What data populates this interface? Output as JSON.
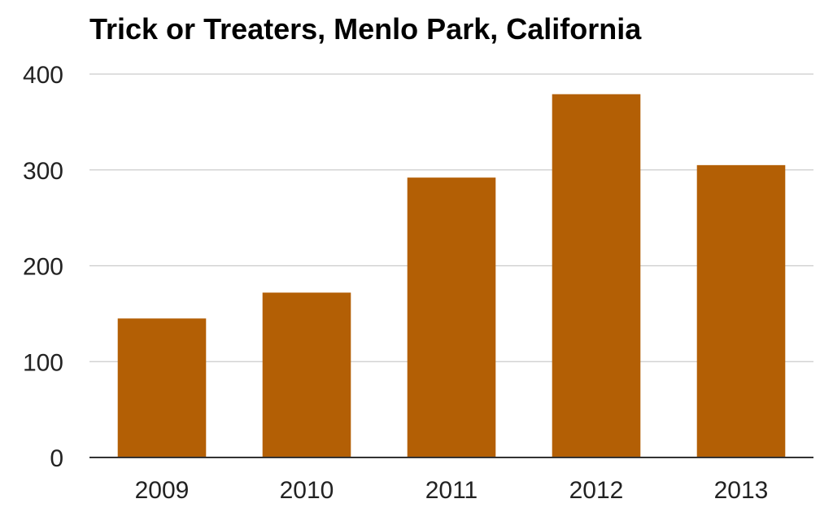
{
  "chart_data": {
    "type": "bar",
    "title": "Trick or Treaters, Menlo Park, California",
    "xlabel": "",
    "ylabel": "",
    "categories": [
      "2009",
      "2010",
      "2011",
      "2012",
      "2013"
    ],
    "values": [
      145,
      172,
      292,
      379,
      305
    ],
    "ylim": [
      0,
      400
    ],
    "yticks": [
      "0",
      "100",
      "200",
      "300",
      "400"
    ],
    "grid": true,
    "legend": "none",
    "bar_color": "#b35f05",
    "grid_color": "#cccccc",
    "axis_color": "#333333"
  }
}
